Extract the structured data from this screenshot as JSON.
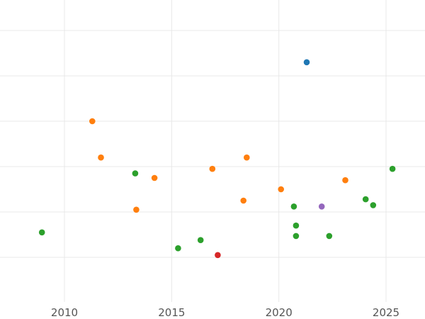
{
  "chart_data": {
    "type": "scatter",
    "title": "",
    "xlabel": "",
    "ylabel": "",
    "xlim": [
      2006,
      2027
    ],
    "ylim": [
      0,
      6.6
    ],
    "x_ticks": [
      2010,
      2015,
      2020,
      2025
    ],
    "x_tick_labels": [
      "2010",
      "2015",
      "2020",
      "2025"
    ],
    "y_gridlines": [
      1,
      2,
      3,
      4,
      5,
      6
    ],
    "grid": true,
    "legend": "none",
    "series": [
      {
        "color": "#1f77b4",
        "points": [
          {
            "x": 2021.3,
            "y": 5.3
          }
        ]
      },
      {
        "color": "#ff7f0e",
        "points": [
          {
            "x": 2011.3,
            "y": 4.0
          },
          {
            "x": 2011.7,
            "y": 3.2
          },
          {
            "x": 2013.35,
            "y": 2.05
          },
          {
            "x": 2014.2,
            "y": 2.75
          },
          {
            "x": 2016.9,
            "y": 2.95
          },
          {
            "x": 2018.35,
            "y": 2.25
          },
          {
            "x": 2018.5,
            "y": 3.2
          },
          {
            "x": 2020.1,
            "y": 2.5
          },
          {
            "x": 2023.1,
            "y": 2.7
          }
        ]
      },
      {
        "color": "#2ca02c",
        "points": [
          {
            "x": 2008.95,
            "y": 1.55
          },
          {
            "x": 2013.3,
            "y": 2.85
          },
          {
            "x": 2015.3,
            "y": 1.2
          },
          {
            "x": 2016.35,
            "y": 1.38
          },
          {
            "x": 2020.7,
            "y": 2.12
          },
          {
            "x": 2020.8,
            "y": 1.7
          },
          {
            "x": 2020.8,
            "y": 1.47
          },
          {
            "x": 2022.35,
            "y": 1.47
          },
          {
            "x": 2024.05,
            "y": 2.28
          },
          {
            "x": 2024.4,
            "y": 2.15
          },
          {
            "x": 2025.3,
            "y": 2.95
          }
        ]
      },
      {
        "color": "#d62728",
        "points": [
          {
            "x": 2017.15,
            "y": 1.05
          }
        ]
      },
      {
        "color": "#9467bd",
        "points": [
          {
            "x": 2022.0,
            "y": 2.12
          }
        ]
      }
    ]
  }
}
